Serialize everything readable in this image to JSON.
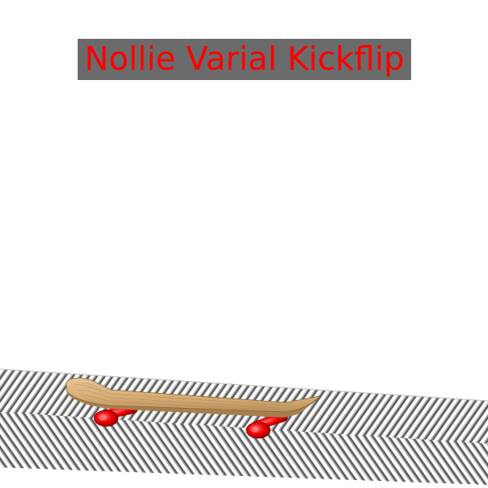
{
  "hud": {
    "trick_name": "Nollie Varial Kickflip"
  },
  "colors": {
    "title_background": "#6b6b6b",
    "title_text": "#ff0000",
    "deck_wood": "#d9b27c",
    "wheels": "#ff0000",
    "ground_light": "#c8c8c8",
    "ground_dark": "#3a3a3a"
  }
}
